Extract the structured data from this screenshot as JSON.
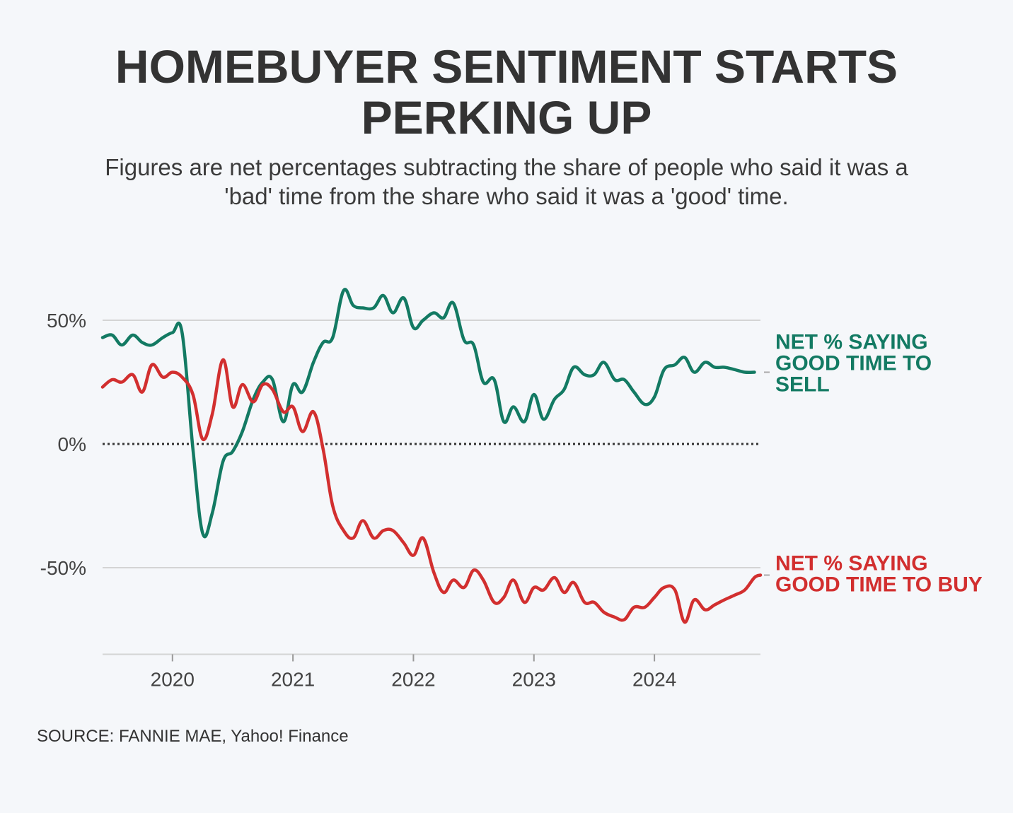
{
  "title_lines": [
    "HOMEBUYER SENTIMENT STARTS",
    "PERKING UP"
  ],
  "subtitle_lines": [
    "Figures are net percentages subtracting the share of people who said it was a",
    "'bad' time from the share who said it was a 'good' time."
  ],
  "source": "SOURCE: FANNIE MAE, Yahoo! Finance",
  "colors": {
    "sell": "#137a63",
    "buy": "#d22f2f",
    "grid": "#d4d4d4",
    "zero_line": "#333333",
    "background": "#f5f7fa"
  },
  "chart_data": {
    "type": "line",
    "title": "HOMEBUYER SENTIMENT STARTS PERKING UP",
    "xlabel": "",
    "ylabel": "",
    "x_unit": "year",
    "xlim": [
      2019.42,
      2024.88
    ],
    "ylim": [
      -85,
      60
    ],
    "y_ticks": [
      {
        "value": 50,
        "label": "50%"
      },
      {
        "value": 0,
        "label": "0%"
      },
      {
        "value": -50,
        "label": "-50%"
      }
    ],
    "x_ticks": [
      {
        "value": 2020,
        "label": "2020"
      },
      {
        "value": 2021,
        "label": "2021"
      },
      {
        "value": 2022,
        "label": "2022"
      },
      {
        "value": 2023,
        "label": "2023"
      },
      {
        "value": 2024,
        "label": "2024"
      }
    ],
    "grid": true,
    "zero_line_style": "dotted",
    "legend": "direct labels at right end of lines",
    "series": [
      {
        "name": "NET % SAYING GOOD TIME TO SELL",
        "label_lines": [
          "NET % SAYING",
          "GOOD TIME TO",
          "SELL"
        ],
        "color": "#137a63",
        "x": [
          2019.42,
          2019.5,
          2019.58,
          2019.67,
          2019.75,
          2019.83,
          2019.92,
          2020.0,
          2020.08,
          2020.17,
          2020.25,
          2020.33,
          2020.42,
          2020.5,
          2020.58,
          2020.67,
          2020.75,
          2020.83,
          2020.92,
          2021.0,
          2021.08,
          2021.17,
          2021.25,
          2021.33,
          2021.42,
          2021.5,
          2021.58,
          2021.67,
          2021.75,
          2021.83,
          2021.92,
          2022.0,
          2022.08,
          2022.17,
          2022.25,
          2022.33,
          2022.42,
          2022.5,
          2022.58,
          2022.67,
          2022.75,
          2022.83,
          2022.92,
          2023.0,
          2023.08,
          2023.17,
          2023.25,
          2023.33,
          2023.42,
          2023.5,
          2023.58,
          2023.67,
          2023.75,
          2023.83,
          2023.92,
          2024.0,
          2024.08,
          2024.17,
          2024.25,
          2024.33,
          2024.42,
          2024.5,
          2024.58,
          2024.67,
          2024.75,
          2024.83
        ],
        "y": [
          43,
          44,
          40,
          44,
          41,
          40,
          43,
          45,
          45,
          -2,
          -36,
          -28,
          -7,
          -3,
          5,
          18,
          25,
          26,
          9,
          24,
          21,
          33,
          41,
          43,
          62,
          56,
          55,
          55,
          60,
          53,
          59,
          47,
          50,
          53,
          51,
          57,
          42,
          40,
          25,
          26,
          9,
          15,
          9,
          20,
          10,
          18,
          22,
          31,
          28,
          28,
          33,
          26,
          26,
          21,
          16,
          19,
          30,
          32,
          35,
          29,
          33,
          31,
          31,
          30,
          29,
          29
        ]
      },
      {
        "name": "NET % SAYING GOOD TIME TO BUY",
        "label_lines": [
          "NET % SAYING",
          "GOOD TIME TO BUY"
        ],
        "color": "#d22f2f",
        "x": [
          2019.42,
          2019.5,
          2019.58,
          2019.67,
          2019.75,
          2019.83,
          2019.92,
          2020.0,
          2020.08,
          2020.17,
          2020.25,
          2020.33,
          2020.42,
          2020.5,
          2020.58,
          2020.67,
          2020.75,
          2020.83,
          2020.92,
          2021.0,
          2021.08,
          2021.17,
          2021.25,
          2021.33,
          2021.42,
          2021.5,
          2021.58,
          2021.67,
          2021.75,
          2021.83,
          2021.92,
          2022.0,
          2022.08,
          2022.17,
          2022.25,
          2022.33,
          2022.42,
          2022.5,
          2022.58,
          2022.67,
          2022.75,
          2022.83,
          2022.92,
          2023.0,
          2023.08,
          2023.17,
          2023.25,
          2023.33,
          2023.42,
          2023.5,
          2023.58,
          2023.67,
          2023.75,
          2023.83,
          2023.92,
          2024.0,
          2024.08,
          2024.17,
          2024.25,
          2024.33,
          2024.42,
          2024.5,
          2024.58,
          2024.67,
          2024.75,
          2024.83,
          2024.88
        ],
        "y": [
          23,
          26,
          25,
          28,
          21,
          32,
          27,
          29,
          27,
          20,
          2,
          12,
          34,
          15,
          24,
          17,
          24,
          22,
          13,
          15,
          5,
          13,
          -2,
          -25,
          -35,
          -38,
          -31,
          -38,
          -35,
          -35,
          -40,
          -45,
          -38,
          -52,
          -60,
          -55,
          -58,
          -51,
          -55,
          -64,
          -62,
          -55,
          -64,
          -58,
          -59,
          -54,
          -60,
          -56,
          -64,
          -64,
          -68,
          -70,
          -71,
          -66,
          -66,
          -62,
          -58,
          -59,
          -72,
          -63,
          -67,
          -65,
          -63,
          -61,
          -59,
          -54,
          -53
        ]
      }
    ]
  }
}
